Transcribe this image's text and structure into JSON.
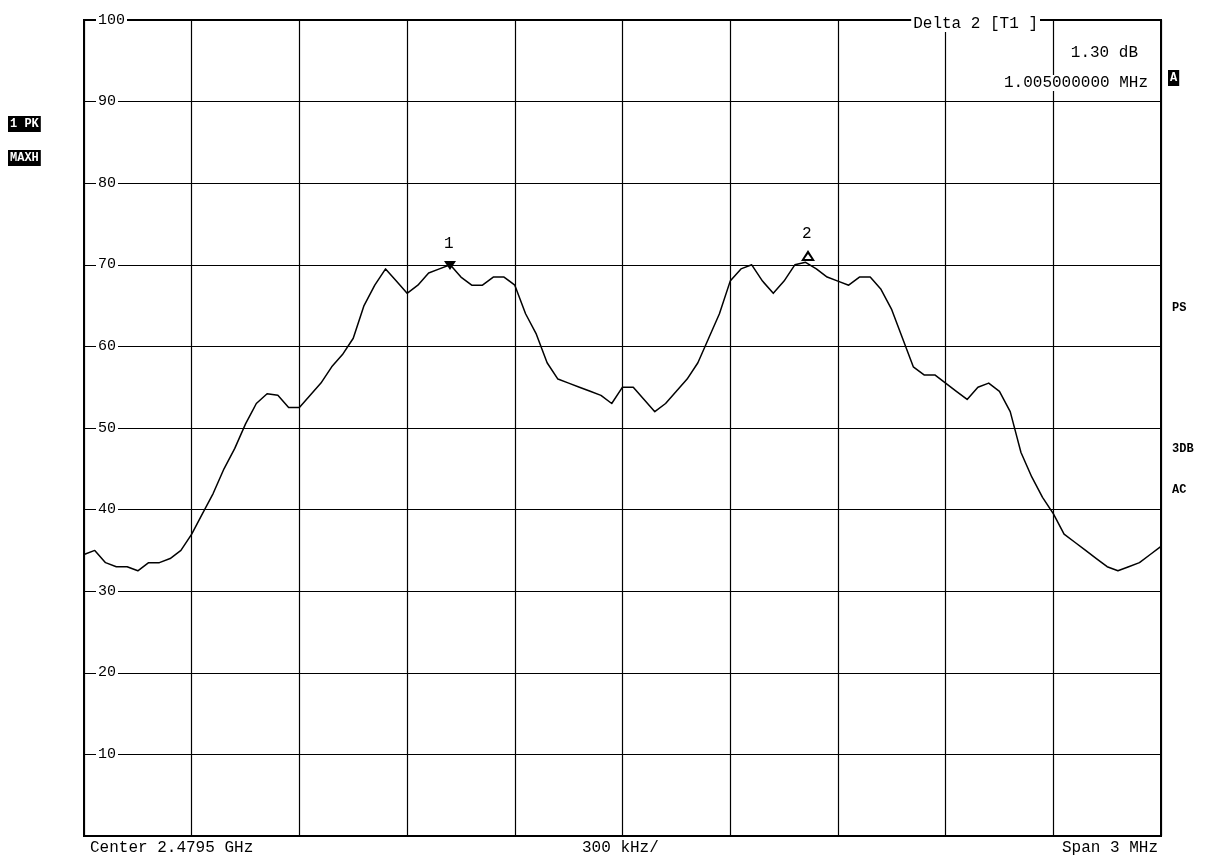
{
  "chart_data": {
    "type": "line",
    "annotations": [
      "Delta 2 [T1 ]",
      "1.30 dB",
      "1.005000000 MHz",
      "1 PK",
      "MAXH",
      "A",
      "PS",
      "3DB",
      "AC",
      "Center 2.4795 GHz",
      "300 kHz/",
      "Span 3 MHz",
      "1",
      "2"
    ],
    "categories": [
      null,
      null,
      null,
      null,
      null,
      null,
      null,
      null,
      null,
      null,
      null,
      null,
      null,
      null,
      null,
      null,
      null,
      null,
      null,
      null,
      null,
      null,
      null,
      null,
      null,
      null,
      null,
      null,
      null,
      null,
      null,
      null,
      null,
      null,
      null,
      null,
      null,
      null,
      null,
      null,
      null,
      null,
      null,
      null,
      null,
      null,
      null,
      null,
      null,
      null,
      null,
      null,
      null,
      null,
      null,
      null,
      null,
      null,
      null,
      null,
      null,
      null,
      null,
      null,
      null,
      null,
      null,
      null,
      null,
      null,
      null,
      null,
      null,
      null,
      null,
      null,
      null,
      null,
      null,
      null,
      null,
      null,
      null,
      null,
      null,
      null,
      null,
      null,
      null,
      null,
      null,
      null,
      null,
      null,
      null,
      null,
      null,
      null,
      null,
      null,
      null
    ],
    "series": [
      {
        "color": "#000000",
        "values": [
          34.5,
          35,
          33.5,
          33,
          33,
          32.5,
          33.5,
          33.5,
          34,
          35,
          37,
          39.5,
          42,
          45,
          47.5,
          50.5,
          53,
          54.2,
          54,
          52.5,
          52.5,
          54,
          55.5,
          57.5,
          59,
          61,
          65,
          67.5,
          69.5,
          68,
          66.5,
          67.5,
          69,
          69.5,
          70,
          68.5,
          67.5,
          67.5,
          68.5,
          68.5,
          67.5,
          64,
          61.5,
          58,
          56,
          55.5,
          55,
          54.5,
          54,
          53,
          55,
          55,
          53.5,
          52,
          53,
          54.5,
          56,
          58,
          61,
          64,
          68,
          69.5,
          70,
          68,
          66.5,
          68,
          70,
          70.3,
          69.5,
          68.5,
          68,
          67.5,
          68.5,
          68.5,
          67,
          64.5,
          61,
          57.5,
          56.5,
          56.5,
          55.5,
          54.5,
          53.5,
          55,
          55.5,
          54.5,
          52,
          47,
          44,
          41.5,
          39.5,
          37,
          36,
          35,
          34,
          33,
          32.5,
          33,
          33.5,
          34.5,
          35.5
        ]
      }
    ],
    "ylim": [
      0,
      100
    ],
    "yticks": [
      10,
      20,
      30,
      40,
      50,
      60,
      70,
      80,
      90,
      100
    ],
    "grid": true,
    "marker": "none",
    "line_style": "solid"
  }
}
